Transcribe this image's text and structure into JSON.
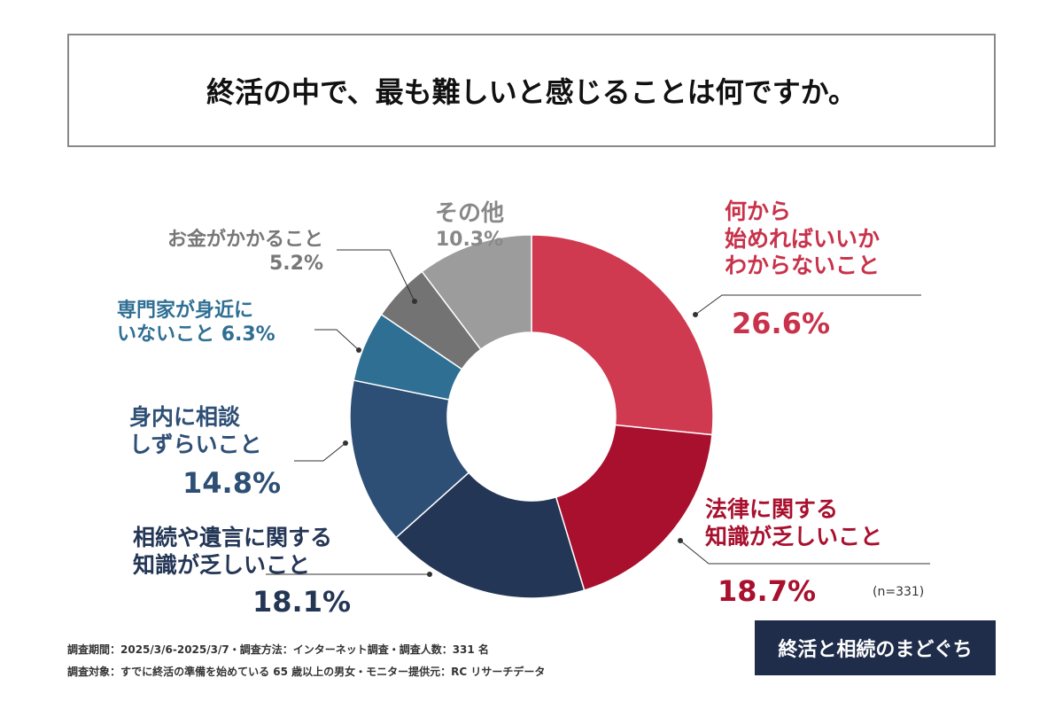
{
  "chart_data": {
    "type": "pie",
    "variant": "donut",
    "title": "終活の中で、最も難しいと感じることは何ですか。",
    "sample_note": "(n=331)",
    "slices": [
      {
        "label": "何から始めればいいかわからないこと",
        "label_lines": [
          "何から",
          "始めればいいか",
          "わからないこと"
        ],
        "value": 26.6,
        "value_label": "26.6%",
        "color": "#d03a50"
      },
      {
        "label": "法律に関する知識が乏しいこと",
        "label_lines": [
          "法律に関する",
          "知識が乏しいこと"
        ],
        "value": 18.7,
        "value_label": "18.7%",
        "color": "#a8102e"
      },
      {
        "label": "相続や遺言に関する知識が乏しいこと",
        "label_lines": [
          "相続や遺言に関する",
          "知識が乏しいこと"
        ],
        "value": 18.1,
        "value_label": "18.1%",
        "color": "#243656"
      },
      {
        "label": "身内に相談しずらいこと",
        "label_lines": [
          "身内に相談",
          "しずらいこと"
        ],
        "value": 14.8,
        "value_label": "14.8%",
        "color": "#2e4f75"
      },
      {
        "label": "専門家が身近にいないこと",
        "label_lines": [
          "専門家が身近に",
          "いないこと"
        ],
        "value": 6.3,
        "value_label": "6.3%",
        "color": "#2f6f93"
      },
      {
        "label": "お金がかかること",
        "label_lines": [
          "お金がかかること"
        ],
        "value": 5.2,
        "value_label": "5.2%",
        "color": "#737373"
      },
      {
        "label": "その他",
        "label_lines": [
          "その他"
        ],
        "value": 10.3,
        "value_label": "10.3%",
        "color": "#9c9c9c"
      }
    ]
  },
  "footer": {
    "line1": "調査期間：2025/3/6-2025/3/7・調査方法：インターネット調査・調査人数：331 名",
    "line2": "調査対象：すでに終活の準備を始めている 65 歳以上の男女・モニター提供元：RC リサーチデータ"
  },
  "logo": {
    "text": "終活と相続のまどぐち"
  }
}
